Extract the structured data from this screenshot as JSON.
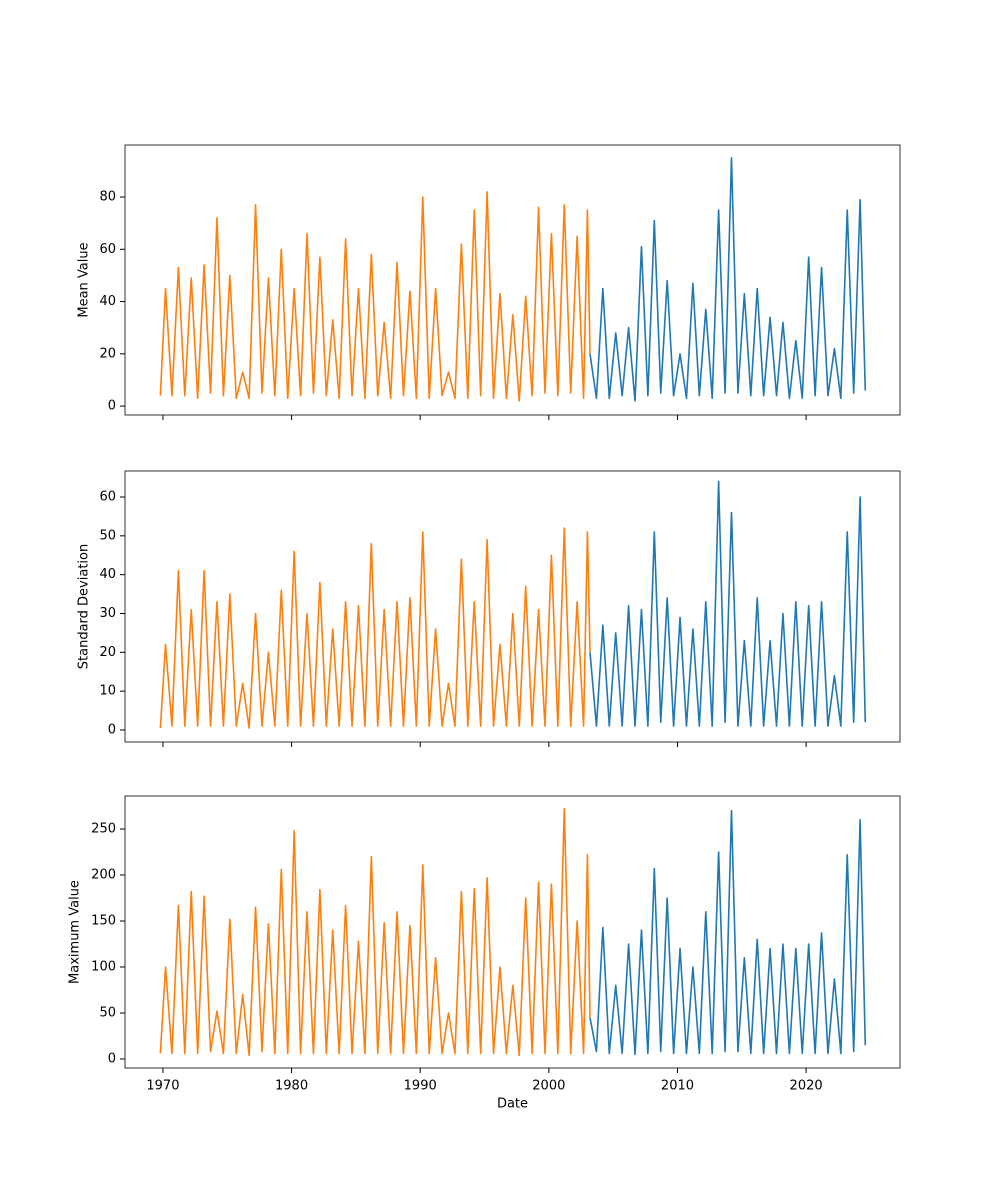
{
  "chart_data": [
    {
      "type": "line",
      "ylabel": "Mean Value",
      "xlim": [
        1967.05,
        2027.3
      ],
      "xticks": [
        1970,
        1980,
        1990,
        2000,
        2010,
        2020
      ],
      "ylim": [
        -3.4,
        99.9
      ],
      "yticks": [
        0,
        20,
        40,
        60,
        80
      ],
      "series": [
        {
          "color": "#1f77b4",
          "x": [
            2003.2,
            2003.7,
            2004.2,
            2004.7,
            2005.2,
            2005.7,
            2006.2,
            2006.7,
            2007.2,
            2007.7,
            2008.2,
            2008.7,
            2009.2,
            2009.7,
            2010.2,
            2010.7,
            2011.2,
            2011.7,
            2012.2,
            2012.7,
            2013.2,
            2013.7,
            2014.2,
            2014.7,
            2015.2,
            2015.7,
            2016.2,
            2016.7,
            2017.2,
            2017.7,
            2018.2,
            2018.7,
            2019.2,
            2019.7,
            2020.2,
            2020.7,
            2021.2,
            2021.7,
            2022.2,
            2022.7,
            2023.2,
            2023.7,
            2024.2,
            2024.6
          ],
          "values": [
            20,
            3,
            45,
            3,
            28,
            4,
            30,
            2,
            61,
            4,
            71,
            5,
            48,
            4,
            20,
            3,
            47,
            4,
            37,
            3,
            75,
            5,
            95,
            5,
            43,
            4,
            45,
            4,
            34,
            4,
            32,
            3,
            25,
            3,
            57,
            4,
            53,
            4,
            22,
            3,
            75,
            5,
            79,
            6
          ]
        },
        {
          "color": "#ff7f0e",
          "x": [
            1969.8,
            1970.2,
            1970.7,
            1971.2,
            1971.7,
            1972.2,
            1972.7,
            1973.2,
            1973.7,
            1974.2,
            1974.7,
            1975.2,
            1975.7,
            1976.2,
            1976.7,
            1977.2,
            1977.7,
            1978.2,
            1978.7,
            1979.2,
            1979.7,
            1980.2,
            1980.7,
            1981.2,
            1981.7,
            1982.2,
            1982.7,
            1983.2,
            1983.7,
            1984.2,
            1984.7,
            1985.2,
            1985.7,
            1986.2,
            1986.7,
            1987.2,
            1987.7,
            1988.2,
            1988.7,
            1989.2,
            1989.7,
            1990.2,
            1990.7,
            1991.2,
            1991.7,
            1992.2,
            1992.7,
            1993.2,
            1993.7,
            1994.2,
            1994.7,
            1995.2,
            1995.7,
            1996.2,
            1996.7,
            1997.2,
            1997.7,
            1998.2,
            1998.7,
            1999.2,
            1999.7,
            2000.2,
            2000.7,
            2001.2,
            2001.7,
            2002.2,
            2002.7,
            2003.0,
            2003.2
          ],
          "values": [
            4,
            45,
            4,
            53,
            4,
            49,
            3,
            54,
            5,
            72,
            4,
            50,
            3,
            13,
            3,
            77,
            5,
            49,
            4,
            60,
            3,
            45,
            4,
            66,
            5,
            57,
            4,
            33,
            3,
            64,
            4,
            45,
            3,
            58,
            4,
            32,
            3,
            55,
            4,
            44,
            3,
            80,
            3,
            45,
            4,
            13,
            3,
            62,
            3,
            75,
            4,
            82,
            3,
            43,
            3,
            35,
            2,
            42,
            4,
            76,
            5,
            66,
            4,
            77,
            5,
            65,
            3,
            75,
            20
          ]
        }
      ]
    },
    {
      "type": "line",
      "ylabel": "Standard Deviation",
      "xlim": [
        1967.05,
        2027.3
      ],
      "xticks": [
        1970,
        1980,
        1990,
        2000,
        2010,
        2020
      ],
      "ylim": [
        -3.1,
        66.7
      ],
      "yticks": [
        0,
        10,
        20,
        30,
        40,
        50,
        60
      ],
      "series": [
        {
          "color": "#1f77b4",
          "x": [
            2003.2,
            2003.7,
            2004.2,
            2004.7,
            2005.2,
            2005.7,
            2006.2,
            2006.7,
            2007.2,
            2007.7,
            2008.2,
            2008.7,
            2009.2,
            2009.7,
            2010.2,
            2010.7,
            2011.2,
            2011.7,
            2012.2,
            2012.7,
            2013.2,
            2013.7,
            2014.2,
            2014.7,
            2015.2,
            2015.7,
            2016.2,
            2016.7,
            2017.2,
            2017.7,
            2018.2,
            2018.7,
            2019.2,
            2019.7,
            2020.2,
            2020.7,
            2021.2,
            2021.7,
            2022.2,
            2022.7,
            2023.2,
            2023.7,
            2024.2,
            2024.6
          ],
          "values": [
            20,
            1,
            27,
            1,
            25,
            1,
            32,
            1,
            31,
            1,
            51,
            2,
            34,
            1,
            29,
            1,
            26,
            1,
            33,
            1,
            64,
            2,
            56,
            1,
            23,
            1,
            34,
            1,
            23,
            1,
            30,
            1,
            33,
            1,
            32,
            1,
            33,
            1,
            14,
            1,
            51,
            2,
            60,
            2
          ]
        },
        {
          "color": "#ff7f0e",
          "x": [
            1969.8,
            1970.2,
            1970.7,
            1971.2,
            1971.7,
            1972.2,
            1972.7,
            1973.2,
            1973.7,
            1974.2,
            1974.7,
            1975.2,
            1975.7,
            1976.2,
            1976.7,
            1977.2,
            1977.7,
            1978.2,
            1978.7,
            1979.2,
            1979.7,
            1980.2,
            1980.7,
            1981.2,
            1981.7,
            1982.2,
            1982.7,
            1983.2,
            1983.7,
            1984.2,
            1984.7,
            1985.2,
            1985.7,
            1986.2,
            1986.7,
            1987.2,
            1987.7,
            1988.2,
            1988.7,
            1989.2,
            1989.7,
            1990.2,
            1990.7,
            1991.2,
            1991.7,
            1992.2,
            1992.7,
            1993.2,
            1993.7,
            1994.2,
            1994.7,
            1995.2,
            1995.7,
            1996.2,
            1996.7,
            1997.2,
            1997.7,
            1998.2,
            1998.7,
            1999.2,
            1999.7,
            2000.2,
            2000.7,
            2001.2,
            2001.7,
            2002.2,
            2002.7,
            2003.0,
            2003.2
          ],
          "values": [
            0.5,
            22,
            1,
            41,
            1,
            31,
            1,
            41,
            1,
            33,
            1,
            35,
            1,
            12,
            0.5,
            30,
            1,
            20,
            1,
            36,
            1,
            46,
            1,
            30,
            1,
            38,
            1,
            26,
            1,
            33,
            1,
            32,
            1,
            48,
            1,
            31,
            1,
            33,
            1,
            34,
            1,
            51,
            1,
            26,
            1,
            12,
            1,
            44,
            1,
            33,
            1,
            49,
            1,
            22,
            1,
            30,
            1,
            37,
            1,
            31,
            1,
            45,
            1,
            52,
            1,
            33,
            1,
            51,
            20
          ]
        }
      ]
    },
    {
      "type": "line",
      "ylabel": "Maximum Value",
      "xlabel": "Date",
      "xlim": [
        1967.05,
        2027.3
      ],
      "xticks": [
        1970,
        1980,
        1990,
        2000,
        2010,
        2020
      ],
      "ylim": [
        -9.8,
        285.9
      ],
      "yticks": [
        0,
        50,
        100,
        150,
        200,
        250
      ],
      "series": [
        {
          "color": "#1f77b4",
          "x": [
            2003.2,
            2003.7,
            2004.2,
            2004.7,
            2005.2,
            2005.7,
            2006.2,
            2006.7,
            2007.2,
            2007.7,
            2008.2,
            2008.7,
            2009.2,
            2009.7,
            2010.2,
            2010.7,
            2011.2,
            2011.7,
            2012.2,
            2012.7,
            2013.2,
            2013.7,
            2014.2,
            2014.7,
            2015.2,
            2015.7,
            2016.2,
            2016.7,
            2017.2,
            2017.7,
            2018.2,
            2018.7,
            2019.2,
            2019.7,
            2020.2,
            2020.7,
            2021.2,
            2021.7,
            2022.2,
            2022.7,
            2023.2,
            2023.7,
            2024.2,
            2024.6
          ],
          "values": [
            45,
            8,
            143,
            6,
            80,
            6,
            125,
            5,
            140,
            6,
            207,
            8,
            175,
            6,
            120,
            6,
            100,
            6,
            160,
            6,
            225,
            8,
            270,
            8,
            110,
            6,
            130,
            6,
            120,
            6,
            125,
            6,
            120,
            6,
            125,
            6,
            137,
            6,
            87,
            6,
            222,
            8,
            260,
            15
          ]
        },
        {
          "color": "#ff7f0e",
          "x": [
            1969.8,
            1970.2,
            1970.7,
            1971.2,
            1971.7,
            1972.2,
            1972.7,
            1973.2,
            1973.7,
            1974.2,
            1974.7,
            1975.2,
            1975.7,
            1976.2,
            1976.7,
            1977.2,
            1977.7,
            1978.2,
            1978.7,
            1979.2,
            1979.7,
            1980.2,
            1980.7,
            1981.2,
            1981.7,
            1982.2,
            1982.7,
            1983.2,
            1983.7,
            1984.2,
            1984.7,
            1985.2,
            1985.7,
            1986.2,
            1986.7,
            1987.2,
            1987.7,
            1988.2,
            1988.7,
            1989.2,
            1989.7,
            1990.2,
            1990.7,
            1991.2,
            1991.7,
            1992.2,
            1992.7,
            1993.2,
            1993.7,
            1994.2,
            1994.7,
            1995.2,
            1995.7,
            1996.2,
            1996.7,
            1997.2,
            1997.7,
            1998.2,
            1998.7,
            1999.2,
            1999.7,
            2000.2,
            2000.7,
            2001.2,
            2001.7,
            2002.2,
            2002.7,
            2003.0,
            2003.2
          ],
          "values": [
            6,
            100,
            6,
            167,
            6,
            182,
            6,
            177,
            8,
            52,
            6,
            152,
            6,
            70,
            4,
            165,
            8,
            147,
            6,
            206,
            6,
            248,
            6,
            160,
            6,
            184,
            6,
            140,
            6,
            167,
            6,
            128,
            6,
            220,
            6,
            148,
            6,
            160,
            6,
            145,
            6,
            211,
            6,
            110,
            6,
            50,
            6,
            182,
            6,
            185,
            6,
            197,
            6,
            100,
            6,
            80,
            4,
            175,
            6,
            192,
            6,
            190,
            6,
            272,
            6,
            150,
            6,
            222,
            45
          ]
        }
      ]
    }
  ]
}
